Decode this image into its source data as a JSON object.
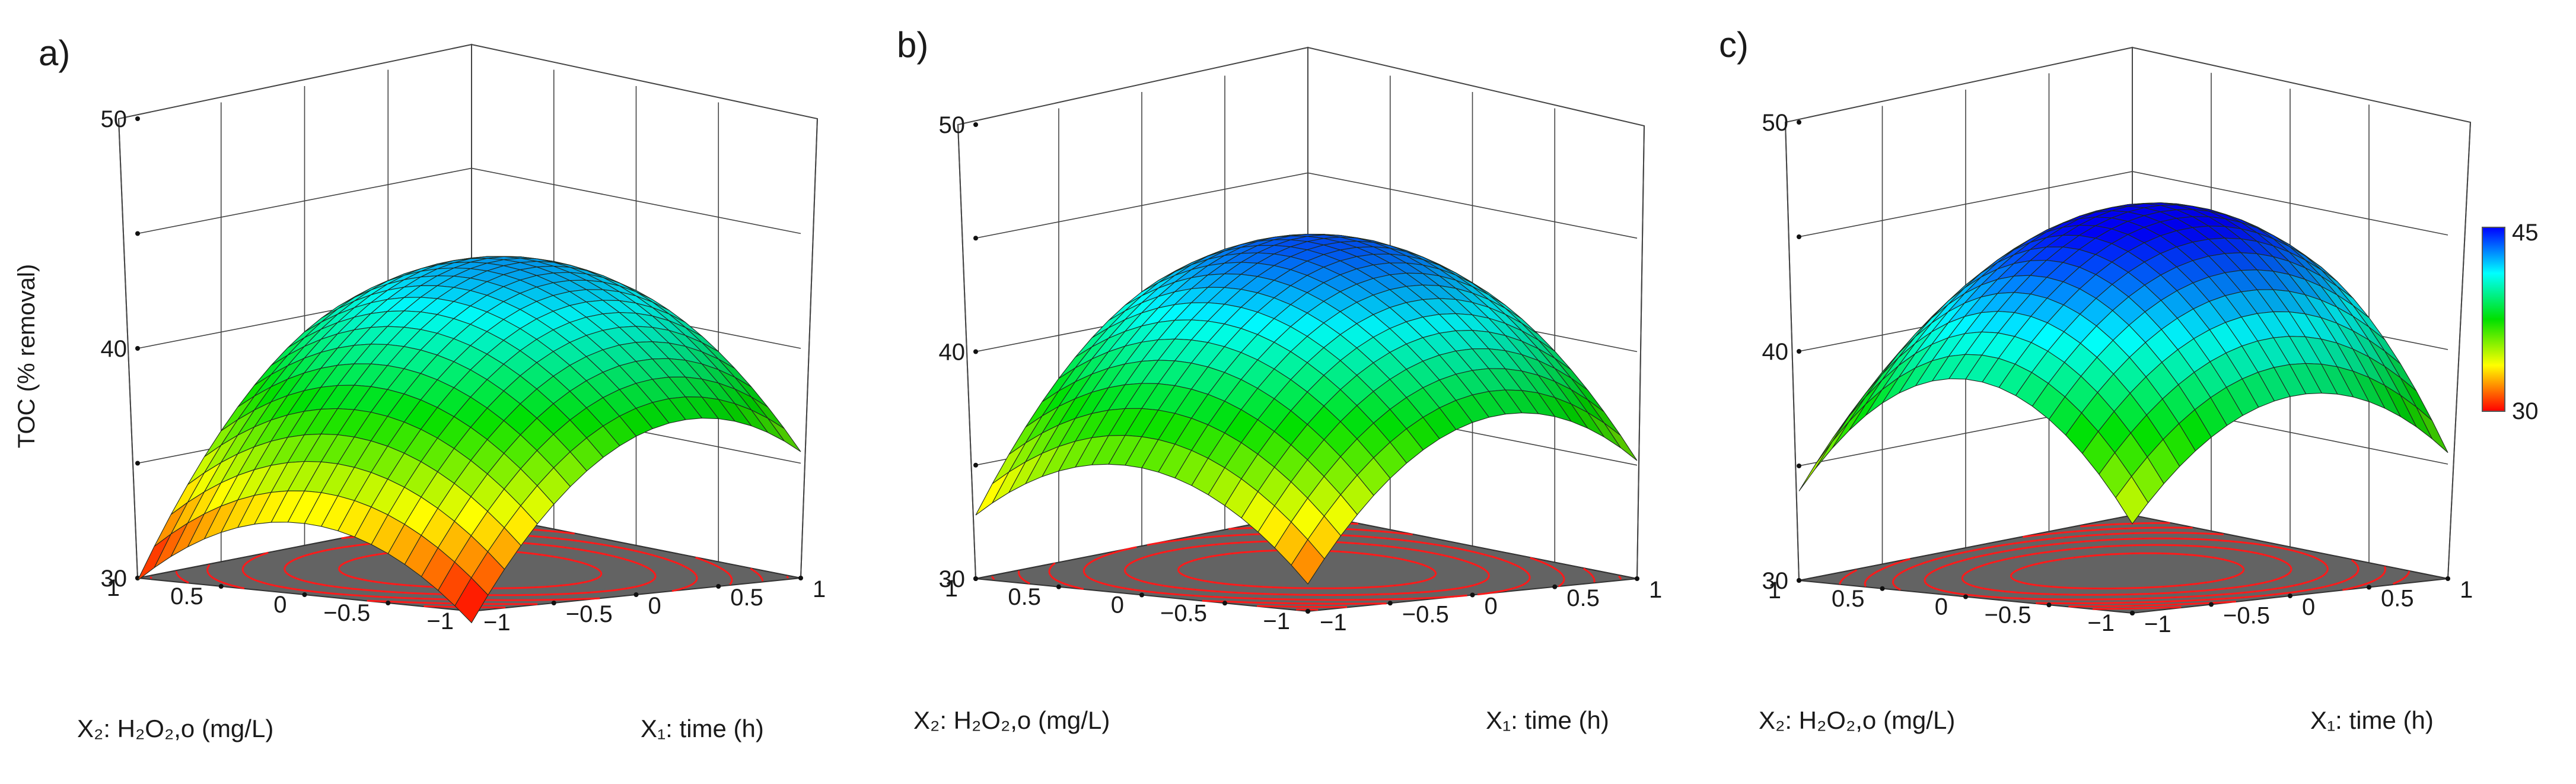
{
  "figure": {
    "panels": [
      {
        "label": "a)",
        "ylabel": "TOC (% removal)",
        "zlim": [
          30,
          50
        ],
        "center": 41.5,
        "slope1": 4.0,
        "curv1": 4.4,
        "slope2": 1.2,
        "curv2": 3.4,
        "inter": 1.0
      },
      {
        "label": "b)",
        "ylabel": "",
        "zlim": [
          30,
          50
        ],
        "center": 43.0,
        "slope1": 3.0,
        "curv1": 4.4,
        "slope2": 1.8,
        "curv2": 3.6,
        "inter": 1.0
      },
      {
        "label": "c)",
        "ylabel": "",
        "zlim": [
          30,
          50
        ],
        "center": 45.3,
        "slope1": 1.8,
        "curv1": 4.0,
        "slope2": 1.0,
        "curv2": 5.6,
        "inter": 1.0
      }
    ],
    "axes": {
      "x1_label": "X₁: time (h)",
      "x2_label": "X₂: H₂O₂,o (mg/L)",
      "x1_ticks": [
        "−1",
        "−0.5",
        "0",
        "0.5",
        "1"
      ],
      "x2_ticks": [
        "1",
        "0.5",
        "0",
        "−0.5",
        "−1"
      ],
      "z_ticks": [
        "30",
        "40",
        "50"
      ]
    },
    "colorbar": {
      "min": "30",
      "max": "45",
      "min_value": 30,
      "max_value": 45
    }
  },
  "chart_data": [
    {
      "type": "surface",
      "title": "",
      "panel": "a)",
      "xlabel": "X₁: time (h)",
      "ylabel": "X₂: H₂O₂,o (mg/L)",
      "zlabel": "TOC (% removal)",
      "xlim": [
        -1,
        1
      ],
      "ylim": [
        -1,
        1
      ],
      "zlim": [
        30,
        50
      ],
      "points": [
        {
          "x1": 0,
          "x2": 0,
          "z": 41.5
        },
        {
          "x1": 1,
          "x2": 1,
          "z": 34
        },
        {
          "x1": -1,
          "x2": -1,
          "z": 32
        },
        {
          "x1": -1,
          "x2": 1,
          "z": 35
        },
        {
          "x1": 1,
          "x2": -1,
          "z": 35
        }
      ],
      "colormap": "red-yellow-green-cyan-blue",
      "floor_contours": true
    },
    {
      "type": "surface",
      "title": "",
      "panel": "b)",
      "xlabel": "X₁: time (h)",
      "ylabel": "X₂: H₂O₂,o (mg/L)",
      "zlabel": "TOC (% removal)",
      "xlim": [
        -1,
        1
      ],
      "ylim": [
        -1,
        1
      ],
      "zlim": [
        30,
        50
      ],
      "points": [
        {
          "x1": 0,
          "x2": 0,
          "z": 43
        },
        {
          "x1": 1,
          "x2": 1,
          "z": 37
        },
        {
          "x1": -1,
          "x2": -1,
          "z": 35
        },
        {
          "x1": -1,
          "x2": 1,
          "z": 38
        },
        {
          "x1": 1,
          "x2": -1,
          "z": 38
        }
      ],
      "colormap": "red-yellow-green-cyan-blue",
      "floor_contours": true
    },
    {
      "type": "surface",
      "title": "",
      "panel": "c)",
      "xlabel": "X₁: time (h)",
      "ylabel": "X₂: H₂O₂,o (mg/L)",
      "zlabel": "TOC (% removal)",
      "xlim": [
        -1,
        1
      ],
      "ylim": [
        -1,
        1
      ],
      "zlim": [
        30,
        50
      ],
      "points": [
        {
          "x1": 0,
          "x2": 0,
          "z": 45.3
        },
        {
          "x1": 1,
          "x2": 1,
          "z": 41
        },
        {
          "x1": -1,
          "x2": -1,
          "z": 37.5
        },
        {
          "x1": -1,
          "x2": 1,
          "z": 40
        },
        {
          "x1": 1,
          "x2": -1,
          "z": 40
        }
      ],
      "colormap": "red-yellow-green-cyan-blue",
      "floor_contours": true
    }
  ]
}
